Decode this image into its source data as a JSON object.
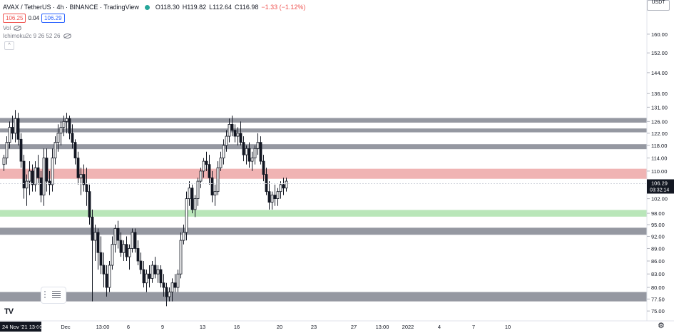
{
  "header": {
    "symbol": "AVAX / TetherUS · 4h · BINANCE · TradingView",
    "open": "O118.30",
    "high": "H119.82",
    "low": "L112.64",
    "close": "C116.98",
    "change": "−1.33 (−1.12%)"
  },
  "trade": {
    "sell": "106.25",
    "spread": "0.04",
    "buy": "106.29"
  },
  "indicators": {
    "vol": "Vol",
    "ichimoku": "Ichimoku2c 9 26 52 26"
  },
  "currency": "USDT",
  "chart_data": {
    "type": "candlestick",
    "price_scale": "log",
    "ylim": [
      73,
      175
    ],
    "y_ticks": [
      {
        "v": 160,
        "t": "160.00"
      },
      {
        "v": 152,
        "t": "152.00"
      },
      {
        "v": 144,
        "t": "144.00"
      },
      {
        "v": 136,
        "t": "136.00"
      },
      {
        "v": 131,
        "t": "131.00"
      },
      {
        "v": 126,
        "t": "126.00"
      },
      {
        "v": 122,
        "t": "122.00"
      },
      {
        "v": 118,
        "t": "118.00"
      },
      {
        "v": 114,
        "t": "114.00"
      },
      {
        "v": 110,
        "t": "110.00"
      },
      {
        "v": 102,
        "t": "102.00"
      },
      {
        "v": 98,
        "t": "98.00"
      },
      {
        "v": 95,
        "t": "95.00"
      },
      {
        "v": 92,
        "t": "92.00"
      },
      {
        "v": 89,
        "t": "89.00"
      },
      {
        "v": 86,
        "t": "86.00"
      },
      {
        "v": 83,
        "t": "83.00"
      },
      {
        "v": 80,
        "t": "80.00"
      },
      {
        "v": 77.5,
        "t": "77.50"
      },
      {
        "v": 75,
        "t": "75.00"
      },
      {
        "v": 72,
        "t": "72.00"
      }
    ],
    "x_labels": [
      {
        "i": 0,
        "t": "24 Nov '21  13:00",
        "hl": true
      },
      {
        "i": 12,
        "t": "28"
      },
      {
        "i": 22,
        "t": "Dec"
      },
      {
        "i": 35,
        "t": "13:00"
      },
      {
        "i": 44,
        "t": "6"
      },
      {
        "i": 56,
        "t": "9"
      },
      {
        "i": 70,
        "t": "13"
      },
      {
        "i": 82,
        "t": "16"
      },
      {
        "i": 97,
        "t": "20"
      },
      {
        "i": 109,
        "t": "23"
      },
      {
        "i": 123,
        "t": "27"
      },
      {
        "i": 133,
        "t": "13:00"
      },
      {
        "i": 142,
        "t": "2022"
      },
      {
        "i": 153,
        "t": "4"
      },
      {
        "i": 165,
        "t": "7"
      },
      {
        "i": 177,
        "t": "10"
      }
    ],
    "last_price": {
      "value": 106.29,
      "label": "106.29",
      "countdown": "03:32:14"
    },
    "zones": [
      {
        "low": 125.6,
        "high": 127.2,
        "color": "#9598a1"
      },
      {
        "low": 122.3,
        "high": 123.6,
        "color": "#9598a1"
      },
      {
        "low": 116.8,
        "high": 118.4,
        "color": "#9598a1"
      },
      {
        "low": 107.7,
        "high": 110.7,
        "color": "#f0b3b3"
      },
      {
        "low": 97.1,
        "high": 98.9,
        "color": "#b9e6b9"
      },
      {
        "low": 92.4,
        "high": 94.2,
        "color": "#9598a1"
      },
      {
        "low": 77.0,
        "high": 79.0,
        "color": "#9598a1"
      }
    ],
    "candles": [
      [
        112,
        115,
        110,
        114
      ],
      [
        114,
        121,
        112,
        119
      ],
      [
        119,
        126,
        117,
        124
      ],
      [
        124,
        128,
        120,
        122
      ],
      [
        122,
        130,
        119,
        127
      ],
      [
        127,
        129,
        118,
        120
      ],
      [
        120,
        122,
        111,
        113
      ],
      [
        113,
        115,
        102,
        105
      ],
      [
        105,
        109,
        100,
        107
      ],
      [
        107,
        113,
        103,
        110
      ],
      [
        110,
        112,
        104,
        106
      ],
      [
        106,
        113,
        104,
        111
      ],
      [
        111,
        115,
        106,
        108
      ],
      [
        108,
        110,
        101,
        103
      ],
      [
        103,
        117,
        100,
        114
      ],
      [
        114,
        117,
        104,
        107
      ],
      [
        107,
        110,
        103,
        106
      ],
      [
        106,
        117,
        104,
        114
      ],
      [
        114,
        121,
        112,
        119
      ],
      [
        119,
        125,
        116,
        122
      ],
      [
        122,
        126,
        118,
        124
      ],
      [
        124,
        128,
        121,
        126
      ],
      [
        126,
        129,
        122,
        127
      ],
      [
        127,
        128,
        120,
        122
      ],
      [
        122,
        125,
        117,
        119
      ],
      [
        119,
        120,
        112,
        114
      ],
      [
        114,
        116,
        106,
        108
      ],
      [
        108,
        111,
        103,
        109
      ],
      [
        109,
        112,
        104,
        106
      ],
      [
        106,
        111,
        100,
        104
      ],
      [
        104,
        106,
        95,
        97
      ],
      [
        97,
        99,
        77,
        91
      ],
      [
        91,
        95,
        86,
        93
      ],
      [
        93,
        94,
        84,
        88
      ],
      [
        88,
        92,
        83,
        85
      ],
      [
        85,
        88,
        80,
        83
      ],
      [
        83,
        85,
        78,
        80
      ],
      [
        80,
        86,
        79,
        85
      ],
      [
        85,
        92,
        84,
        90
      ],
      [
        90,
        95,
        88,
        94
      ],
      [
        94,
        96,
        89,
        91
      ],
      [
        91,
        93,
        87,
        88
      ],
      [
        88,
        91,
        86,
        90
      ],
      [
        90,
        92,
        86,
        87
      ],
      [
        87,
        90,
        84,
        89
      ],
      [
        89,
        94,
        88,
        93
      ],
      [
        93,
        94,
        88,
        89
      ],
      [
        89,
        91,
        85,
        86
      ],
      [
        86,
        88,
        83,
        84
      ],
      [
        84,
        86,
        80,
        81
      ],
      [
        81,
        84,
        79,
        83
      ],
      [
        83,
        85,
        80,
        82
      ],
      [
        82,
        86,
        81,
        85
      ],
      [
        85,
        87,
        82,
        83
      ],
      [
        83,
        85,
        81,
        84
      ],
      [
        84,
        85,
        80,
        81
      ],
      [
        81,
        83,
        78,
        80
      ],
      [
        80,
        81,
        76,
        78
      ],
      [
        78,
        80,
        77,
        79
      ],
      [
        79,
        82,
        77,
        81
      ],
      [
        81,
        83,
        79,
        80
      ],
      [
        80,
        84,
        79,
        83
      ],
      [
        83,
        93,
        82,
        91
      ],
      [
        91,
        95,
        90,
        93
      ],
      [
        93,
        104,
        91,
        102
      ],
      [
        102,
        107,
        100,
        105
      ],
      [
        105,
        106,
        98,
        99
      ],
      [
        99,
        103,
        97,
        102
      ],
      [
        102,
        108,
        100,
        107
      ],
      [
        107,
        111,
        105,
        110
      ],
      [
        110,
        114,
        108,
        113
      ],
      [
        113,
        116,
        110,
        112
      ],
      [
        112,
        115,
        106,
        108
      ],
      [
        108,
        110,
        101,
        103
      ],
      [
        103,
        106,
        100,
        104
      ],
      [
        104,
        113,
        103,
        111
      ],
      [
        111,
        116,
        110,
        114
      ],
      [
        114,
        120,
        112,
        118
      ],
      [
        118,
        123,
        116,
        121
      ],
      [
        121,
        127,
        119,
        125
      ],
      [
        125,
        128,
        121,
        123
      ],
      [
        123,
        125,
        119,
        121
      ],
      [
        121,
        124,
        118,
        122
      ],
      [
        122,
        126,
        118,
        119
      ],
      [
        119,
        121,
        113,
        115
      ],
      [
        115,
        118,
        112,
        117
      ],
      [
        117,
        119,
        111,
        113
      ],
      [
        113,
        116,
        110,
        114
      ],
      [
        114,
        118,
        112,
        117
      ],
      [
        117,
        122,
        115,
        119
      ],
      [
        119,
        121,
        112,
        113
      ],
      [
        113,
        115,
        107,
        109
      ],
      [
        109,
        111,
        103,
        104
      ],
      [
        104,
        107,
        99,
        101
      ],
      [
        101,
        104,
        99,
        103
      ],
      [
        103,
        106,
        100,
        102
      ],
      [
        102,
        105,
        100,
        104
      ],
      [
        104,
        107,
        102,
        106
      ],
      [
        106,
        108,
        103,
        105
      ],
      [
        105,
        108,
        104,
        107
      ]
    ]
  }
}
